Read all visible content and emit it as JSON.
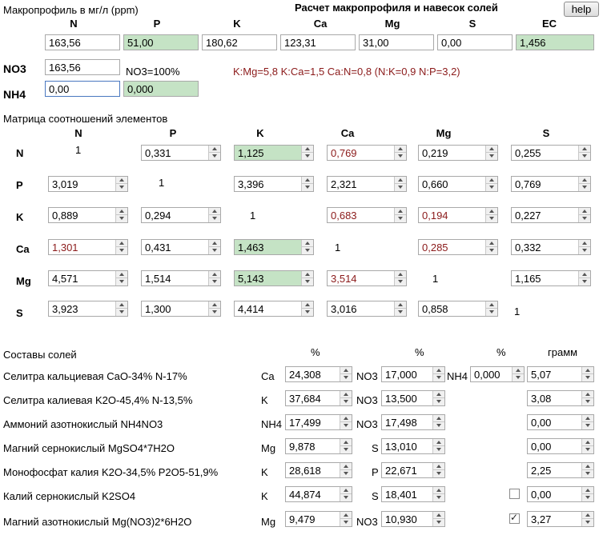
{
  "header": {
    "profile_title": "Макропрофиль в мг/л (ppm)",
    "app_title": "Расчет макропрофиля и навесок солей",
    "help_label": "help"
  },
  "profile": {
    "columns": [
      "N",
      "P",
      "K",
      "Ca",
      "Mg",
      "S",
      "EC"
    ],
    "values": [
      "163,56",
      "51,00",
      "180,62",
      "123,31",
      "31,00",
      "0,00",
      "1,456"
    ],
    "no3_label": "NO3",
    "no3_value": "163,56",
    "no3_percent": "NO3=100%",
    "nh4_label": "NH4",
    "nh4_value": "0,00",
    "nh4_value2": "0,000",
    "ratios": "K:Mg=5,8 K:Ca=1,5 Ca:N=0,8 (N:K=0,9 N:P=3,2)"
  },
  "matrix": {
    "title": "Матрица соотношений элементов",
    "columns": [
      "N",
      "P",
      "K",
      "Ca",
      "Mg",
      "S"
    ],
    "rows": [
      {
        "label": "N",
        "cells": [
          "1",
          "0,331",
          "1,125",
          "0,769",
          "0,219",
          "0,255"
        ]
      },
      {
        "label": "P",
        "cells": [
          "3,019",
          "1",
          "3,396",
          "2,321",
          "0,660",
          "0,769"
        ]
      },
      {
        "label": "K",
        "cells": [
          "0,889",
          "0,294",
          "1",
          "0,683",
          "0,194",
          "0,227"
        ]
      },
      {
        "label": "Ca",
        "cells": [
          "1,301",
          "0,431",
          "1,463",
          "1",
          "0,285",
          "0,332"
        ]
      },
      {
        "label": "Mg",
        "cells": [
          "4,571",
          "1,514",
          "5,143",
          "3,514",
          "1",
          "1,165"
        ]
      },
      {
        "label": "S",
        "cells": [
          "3,923",
          "1,300",
          "4,414",
          "3,016",
          "0,858",
          "1"
        ]
      }
    ]
  },
  "salts": {
    "title": "Составы солей",
    "pct1": "%",
    "pct2": "%",
    "pct3": "%",
    "gram": "грамм",
    "rows": [
      {
        "name": "Селитра кальциевая CaO-34% N-17%",
        "el1": "Ca",
        "v1": "24,308",
        "el2": "NO3",
        "v2": "17,000",
        "el3": "NH4",
        "v3": "0,000",
        "gram": "5,07"
      },
      {
        "name": "Селитра калиевая K2O-45,4% N-13,5%",
        "el1": "K",
        "v1": "37,684",
        "el2": "NO3",
        "v2": "13,500",
        "gram": "3,08"
      },
      {
        "name": "Аммоний азотнокислый NH4NO3",
        "el1": "NH4",
        "v1": "17,499",
        "el2": "NO3",
        "v2": "17,498",
        "gram": "0,00"
      },
      {
        "name": "Магний сернокислый MgSO4*7H2O",
        "el1": "Mg",
        "v1": "9,878",
        "el2": "S",
        "v2": "13,010",
        "gram": "0,00"
      },
      {
        "name": "Монофосфат калия K2O-34,5% P2O5-51,9%",
        "el1": "K",
        "v1": "28,618",
        "el2": "P",
        "v2": "22,671",
        "gram": "2,25"
      },
      {
        "name": "Калий сернокислый K2SO4",
        "el1": "K",
        "v1": "44,874",
        "el2": "S",
        "v2": "18,401",
        "checked": false,
        "gram": "0,00"
      },
      {
        "name": "Магний азотнокислый Mg(NO3)2*6H2O",
        "el1": "Mg",
        "v1": "9,479",
        "el2": "NO3",
        "v2": "10,930",
        "checked": true,
        "gram": "3,27"
      }
    ]
  },
  "colors": {
    "highlight_green": "#c5e3c5",
    "warn_red": "#8b1a1a"
  }
}
